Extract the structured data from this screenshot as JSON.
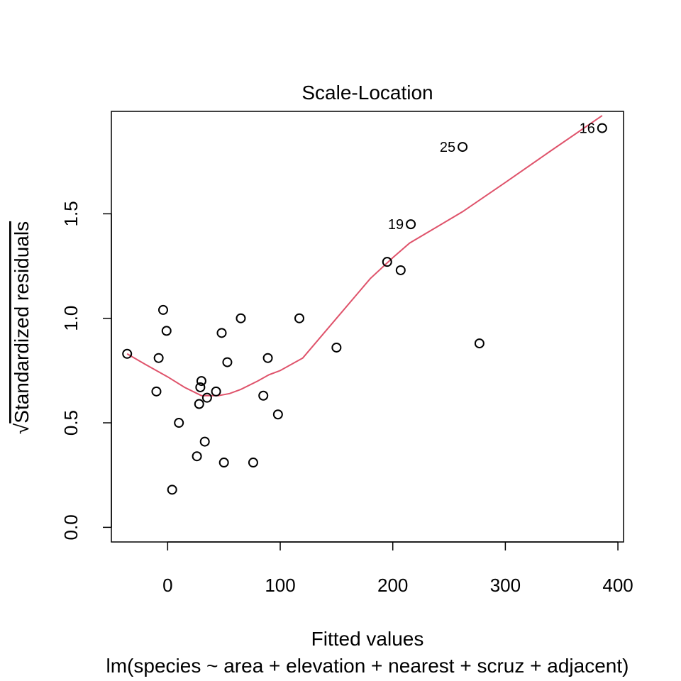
{
  "chart_data": {
    "type": "scatter",
    "title": "Scale-Location",
    "xlabel": "Fitted values",
    "subtitle": "lm(species ~ area + elevation + nearest + scruz + adjacent)",
    "ylabel": "Standardized residuals",
    "ylabel_prefix": "√",
    "xlim": [
      -50,
      405
    ],
    "ylim": [
      -0.07,
      1.99
    ],
    "xticks": [
      0,
      100,
      200,
      300,
      400
    ],
    "yticks": [
      0.0,
      0.5,
      1.0,
      1.5
    ],
    "xtick_labels": [
      "0",
      "100",
      "200",
      "300",
      "400"
    ],
    "ytick_labels": [
      "0.0",
      "0.5",
      "1.0",
      "1.5"
    ],
    "grid": false,
    "point_color": "#000000",
    "line_color": "#DF536B",
    "points": [
      {
        "x": -36,
        "y": 0.83
      },
      {
        "x": -8,
        "y": 0.81
      },
      {
        "x": -10,
        "y": 0.65
      },
      {
        "x": -4,
        "y": 1.04
      },
      {
        "x": -1,
        "y": 0.94
      },
      {
        "x": 4,
        "y": 0.18
      },
      {
        "x": 10,
        "y": 0.5
      },
      {
        "x": 26,
        "y": 0.34
      },
      {
        "x": 28,
        "y": 0.59
      },
      {
        "x": 29,
        "y": 0.67
      },
      {
        "x": 30,
        "y": 0.7
      },
      {
        "x": 33,
        "y": 0.41
      },
      {
        "x": 35,
        "y": 0.62
      },
      {
        "x": 43,
        "y": 0.65
      },
      {
        "x": 48,
        "y": 0.93
      },
      {
        "x": 50,
        "y": 0.31
      },
      {
        "x": 53,
        "y": 0.79
      },
      {
        "x": 65,
        "y": 1.0
      },
      {
        "x": 76,
        "y": 0.31
      },
      {
        "x": 85,
        "y": 0.63
      },
      {
        "x": 89,
        "y": 0.81
      },
      {
        "x": 98,
        "y": 0.54
      },
      {
        "x": 117,
        "y": 1.0
      },
      {
        "x": 150,
        "y": 0.86
      },
      {
        "x": 195,
        "y": 1.27
      },
      {
        "x": 207,
        "y": 1.23
      },
      {
        "x": 216,
        "y": 1.45,
        "label": "19"
      },
      {
        "x": 262,
        "y": 1.82,
        "label": "25"
      },
      {
        "x": 277,
        "y": 0.88
      },
      {
        "x": 386,
        "y": 1.91,
        "label": "16"
      }
    ],
    "smooth_line": {
      "x": [
        -36,
        -20,
        0,
        15,
        30,
        45,
        55,
        65,
        80,
        90,
        100,
        120,
        150,
        180,
        200,
        215,
        240,
        262,
        300,
        340,
        386
      ],
      "y": [
        0.83,
        0.78,
        0.72,
        0.67,
        0.63,
        0.63,
        0.64,
        0.66,
        0.7,
        0.73,
        0.75,
        0.81,
        1.0,
        1.19,
        1.29,
        1.36,
        1.44,
        1.51,
        1.65,
        1.8,
        1.97
      ]
    }
  }
}
